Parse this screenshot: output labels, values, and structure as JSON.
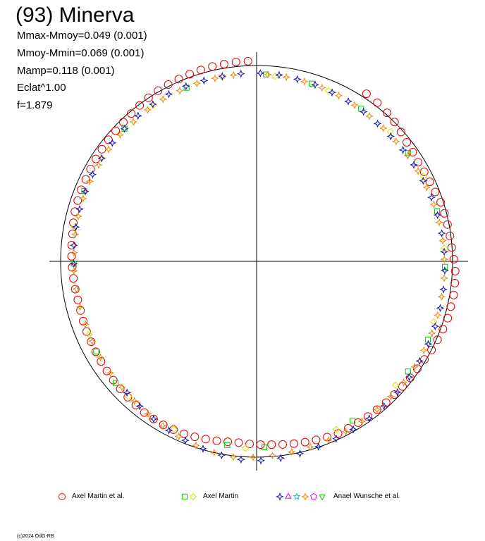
{
  "title": "(93) Minerva",
  "stats": [
    "Mmax-Mmoy=0.049 (0.001)",
    "Mmoy-Mmin=0.069 (0.001)",
    "Mamp=0.118 (0.001)",
    "Eclat^1.00",
    "f=1.879"
  ],
  "copyright": "(c)2024 OdG-RB",
  "colors": {
    "red": "#dd0000",
    "green": "#00cc00",
    "yellow": "#dddd00",
    "blue": "#1010b0",
    "orange": "#ee8800",
    "magenta": "#dd00dd",
    "cyan": "#00cccc"
  },
  "chart_data": {
    "type": "scatter",
    "coordinate_system": "polar (rotation phase as angle, brightness as radial distance)",
    "reference_circle": "unit circle",
    "grid": false,
    "axes": "crosshair through center",
    "legend_position": "bottom",
    "legend": [
      {
        "label": "Axel Martin et al.",
        "markers": [
          {
            "shape": "circle",
            "color": "red"
          }
        ]
      },
      {
        "label": "Axel Martin",
        "markers": [
          {
            "shape": "square",
            "color": "green"
          },
          {
            "shape": "diamond",
            "color": "yellow"
          }
        ]
      },
      {
        "label": "Anael Wunsche et al.",
        "markers": [
          {
            "shape": "star4",
            "color": "blue"
          },
          {
            "shape": "triangle",
            "color": "magenta"
          },
          {
            "shape": "star5",
            "color": "cyan"
          },
          {
            "shape": "star4",
            "color": "orange"
          },
          {
            "shape": "pentagon",
            "color": "magenta"
          },
          {
            "shape": "triangle-down",
            "color": "green"
          }
        ]
      }
    ],
    "series": [
      {
        "name": "Axel Martin et al.",
        "marker": "circle",
        "color": "red",
        "points": [
          [
            0.58,
            0.33
          ],
          [
            0.65,
            0.32
          ],
          [
            0.72,
            0.305
          ],
          [
            0.78,
            0.29
          ],
          [
            0.84,
            0.27
          ],
          [
            0.9,
            0.25
          ],
          [
            0.96,
            0.24
          ],
          [
            1.02,
            0.23
          ],
          [
            1.08,
            0.235
          ],
          [
            1.14,
            0.24
          ],
          [
            1.2,
            0.25
          ],
          [
            1.26,
            0.265
          ],
          [
            1.32,
            0.27
          ],
          [
            1.38,
            0.275
          ],
          [
            1.44,
            0.28
          ],
          [
            1.5,
            0.285
          ],
          [
            1.56,
            0.3
          ],
          [
            1.62,
            0.315
          ],
          [
            1.68,
            0.32
          ],
          [
            1.74,
            0.325
          ],
          [
            1.8,
            0.32
          ],
          [
            1.86,
            0.32
          ],
          [
            1.92,
            0.31
          ],
          [
            1.98,
            0.3
          ],
          [
            2.04,
            0.29
          ],
          [
            2.1,
            0.275
          ],
          [
            2.16,
            0.265
          ],
          [
            2.22,
            0.26
          ],
          [
            2.28,
            0.255
          ],
          [
            2.34,
            0.25
          ],
          [
            2.4,
            0.25
          ],
          [
            2.46,
            0.245
          ],
          [
            2.52,
            0.245
          ],
          [
            2.58,
            0.24
          ],
          [
            2.64,
            0.24
          ],
          [
            2.7,
            0.24
          ],
          [
            2.76,
            0.23
          ],
          [
            2.82,
            0.22
          ],
          [
            2.88,
            0.21
          ],
          [
            2.94,
            0.2
          ],
          [
            3.0,
            0.19
          ],
          [
            3.06,
            0.18
          ],
          [
            3.12,
            0.175
          ],
          [
            3.18,
            0.17
          ],
          [
            3.24,
            0.165
          ],
          [
            3.3,
            0.17
          ],
          [
            3.36,
            0.18
          ],
          [
            3.42,
            0.19
          ],
          [
            3.48,
            0.2
          ],
          [
            3.54,
            0.21
          ],
          [
            3.6,
            0.215
          ],
          [
            3.66,
            0.22
          ],
          [
            3.72,
            0.22
          ],
          [
            3.78,
            0.22
          ],
          [
            3.84,
            0.215
          ],
          [
            3.9,
            0.21
          ],
          [
            3.96,
            0.205
          ],
          [
            4.02,
            0.2
          ],
          [
            4.08,
            0.195
          ],
          [
            4.14,
            0.19
          ],
          [
            4.2,
            0.185
          ],
          [
            4.26,
            0.18
          ],
          [
            4.32,
            0.18
          ],
          [
            4.38,
            0.175
          ],
          [
            4.44,
            0.17
          ],
          [
            4.5,
            0.17
          ],
          [
            4.56,
            0.175
          ],
          [
            4.62,
            0.18
          ],
          [
            4.68,
            0.185
          ],
          [
            4.74,
            0.19
          ],
          [
            4.8,
            0.195
          ],
          [
            4.86,
            0.2
          ],
          [
            4.92,
            0.21
          ],
          [
            4.98,
            0.22
          ],
          [
            5.04,
            0.225
          ],
          [
            5.1,
            0.23
          ],
          [
            5.16,
            0.23
          ],
          [
            5.22,
            0.235
          ],
          [
            5.28,
            0.24
          ],
          [
            5.34,
            0.245
          ],
          [
            5.4,
            0.25
          ],
          [
            5.46,
            0.255
          ],
          [
            5.52,
            0.26
          ],
          [
            5.58,
            0.27
          ],
          [
            5.64,
            0.28
          ],
          [
            5.7,
            0.29
          ],
          [
            5.76,
            0.3
          ],
          [
            5.82,
            0.305
          ],
          [
            5.88,
            0.31
          ],
          [
            5.94,
            0.315
          ],
          [
            6.0,
            0.32
          ],
          [
            6.06,
            0.325
          ],
          [
            6.12,
            0.325
          ],
          [
            6.18,
            0.33
          ],
          [
            6.24,
            0.33
          ]
        ]
      },
      {
        "name": "Axel Martin",
        "marker": "square",
        "color": "green",
        "points": [
          [
            0.05,
            0.21
          ],
          [
            0.3,
            0.2
          ],
          [
            0.6,
            0.19
          ],
          [
            0.95,
            0.2
          ],
          [
            1.3,
            0.21
          ],
          [
            1.6,
            0.22
          ],
          [
            2.0,
            0.22
          ],
          [
            2.2,
            0.21
          ],
          [
            2.6,
            0.2
          ],
          [
            3.1,
            0.2
          ],
          [
            3.3,
            0.2
          ],
          [
            4.0,
            0.2
          ],
          [
            4.2,
            0.18
          ],
          [
            4.7,
            0.17
          ],
          [
            5.1,
            0.2
          ],
          [
            5.5,
            0.21
          ],
          [
            5.9,
            0.21
          ]
        ]
      },
      {
        "name": "Axel Martin",
        "marker": "diamond",
        "color": "yellow",
        "points": [
          [
            0.1,
            0.2
          ],
          [
            0.4,
            0.19
          ],
          [
            0.8,
            0.2
          ],
          [
            1.1,
            0.21
          ],
          [
            1.5,
            0.22
          ],
          [
            1.9,
            0.21
          ],
          [
            2.3,
            0.2
          ],
          [
            2.7,
            0.2
          ],
          [
            3.2,
            0.21
          ],
          [
            3.6,
            0.21
          ],
          [
            3.9,
            0.2
          ],
          [
            4.3,
            0.17
          ],
          [
            4.9,
            0.19
          ],
          [
            5.3,
            0.2
          ],
          [
            5.7,
            0.21
          ],
          [
            6.1,
            0.21
          ]
        ]
      },
      {
        "name": "Anael Wunsche et al.",
        "marker": "star4",
        "color": "blue",
        "points": [
          [
            0.02,
            0.22
          ],
          [
            0.12,
            0.215
          ],
          [
            0.22,
            0.205
          ],
          [
            0.32,
            0.2
          ],
          [
            0.42,
            0.19
          ],
          [
            0.52,
            0.185
          ],
          [
            0.62,
            0.18
          ],
          [
            0.72,
            0.175
          ],
          [
            0.82,
            0.175
          ],
          [
            0.92,
            0.18
          ],
          [
            1.02,
            0.185
          ],
          [
            1.12,
            0.19
          ],
          [
            1.22,
            0.2
          ],
          [
            1.32,
            0.205
          ],
          [
            1.42,
            0.21
          ],
          [
            1.52,
            0.215
          ],
          [
            1.62,
            0.22
          ],
          [
            1.72,
            0.225
          ],
          [
            1.82,
            0.23
          ],
          [
            1.92,
            0.235
          ],
          [
            2.02,
            0.24
          ],
          [
            2.12,
            0.245
          ],
          [
            2.22,
            0.25
          ],
          [
            2.32,
            0.255
          ],
          [
            2.42,
            0.26
          ],
          [
            2.52,
            0.265
          ],
          [
            2.62,
            0.27
          ],
          [
            2.72,
            0.275
          ],
          [
            2.82,
            0.285
          ],
          [
            2.92,
            0.3
          ],
          [
            3.02,
            0.31
          ],
          [
            3.12,
            0.32
          ],
          [
            3.22,
            0.315
          ],
          [
            3.32,
            0.3
          ],
          [
            3.42,
            0.28
          ],
          [
            3.52,
            0.26
          ],
          [
            3.62,
            0.24
          ],
          [
            3.72,
            0.22
          ],
          [
            3.82,
            0.2
          ],
          [
            3.92,
            0.185
          ],
          [
            4.7,
            0.17
          ],
          [
            4.8,
            0.175
          ],
          [
            4.9,
            0.18
          ],
          [
            5.0,
            0.185
          ],
          [
            5.1,
            0.19
          ],
          [
            5.2,
            0.195
          ],
          [
            5.3,
            0.2
          ],
          [
            5.4,
            0.205
          ],
          [
            5.5,
            0.21
          ],
          [
            5.6,
            0.215
          ],
          [
            5.7,
            0.22
          ],
          [
            5.8,
            0.225
          ],
          [
            5.9,
            0.225
          ],
          [
            6.0,
            0.22
          ],
          [
            6.1,
            0.22
          ],
          [
            6.2,
            0.22
          ]
        ]
      },
      {
        "name": "Anael Wunsche et al.",
        "marker": "star4",
        "color": "orange",
        "points": [
          [
            0.06,
            0.21
          ],
          [
            0.16,
            0.205
          ],
          [
            0.26,
            0.2
          ],
          [
            0.36,
            0.195
          ],
          [
            0.46,
            0.19
          ],
          [
            0.56,
            0.185
          ],
          [
            0.66,
            0.18
          ],
          [
            0.76,
            0.18
          ],
          [
            0.86,
            0.18
          ],
          [
            0.96,
            0.185
          ],
          [
            1.06,
            0.19
          ],
          [
            1.16,
            0.195
          ],
          [
            1.26,
            0.2
          ],
          [
            1.36,
            0.205
          ],
          [
            1.46,
            0.21
          ],
          [
            1.56,
            0.215
          ],
          [
            1.66,
            0.22
          ],
          [
            1.76,
            0.22
          ],
          [
            1.86,
            0.225
          ],
          [
            1.96,
            0.23
          ],
          [
            2.06,
            0.23
          ],
          [
            2.16,
            0.235
          ],
          [
            2.26,
            0.24
          ],
          [
            2.36,
            0.24
          ],
          [
            2.46,
            0.245
          ],
          [
            2.56,
            0.25
          ],
          [
            2.66,
            0.255
          ],
          [
            2.76,
            0.26
          ],
          [
            2.86,
            0.265
          ],
          [
            2.96,
            0.27
          ],
          [
            3.06,
            0.28
          ],
          [
            3.16,
            0.29
          ],
          [
            3.26,
            0.3
          ],
          [
            3.36,
            0.29
          ],
          [
            3.46,
            0.27
          ],
          [
            3.56,
            0.25
          ],
          [
            3.66,
            0.23
          ],
          [
            3.76,
            0.21
          ],
          [
            3.86,
            0.195
          ],
          [
            3.96,
            0.185
          ],
          [
            4.06,
            0.18
          ],
          [
            4.16,
            0.175
          ],
          [
            4.26,
            0.17
          ],
          [
            4.36,
            0.165
          ],
          [
            4.46,
            0.165
          ],
          [
            4.56,
            0.165
          ],
          [
            4.66,
            0.17
          ],
          [
            4.76,
            0.17
          ],
          [
            4.86,
            0.175
          ],
          [
            4.96,
            0.18
          ],
          [
            5.06,
            0.185
          ],
          [
            5.16,
            0.19
          ],
          [
            5.26,
            0.19
          ],
          [
            5.36,
            0.195
          ],
          [
            5.46,
            0.2
          ],
          [
            5.56,
            0.2
          ],
          [
            5.66,
            0.205
          ],
          [
            5.76,
            0.21
          ],
          [
            5.86,
            0.21
          ],
          [
            5.96,
            0.215
          ],
          [
            6.06,
            0.215
          ],
          [
            6.16,
            0.215
          ]
        ]
      }
    ]
  }
}
